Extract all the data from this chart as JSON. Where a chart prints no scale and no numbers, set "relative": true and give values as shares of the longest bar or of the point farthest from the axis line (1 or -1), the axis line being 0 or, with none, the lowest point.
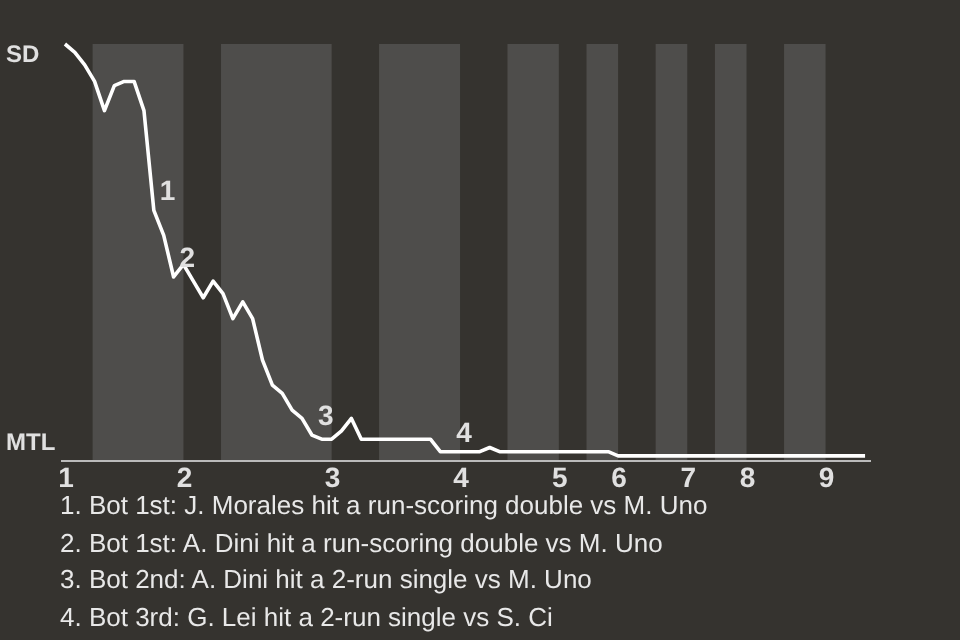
{
  "chart_data": {
    "type": "line",
    "categories": [
      "1",
      null,
      null,
      null,
      null,
      null,
      null,
      null,
      null,
      null,
      null,
      null,
      "2",
      null,
      null,
      null,
      null,
      null,
      null,
      null,
      null,
      null,
      null,
      null,
      null,
      null,
      null,
      "3",
      null,
      null,
      null,
      null,
      null,
      null,
      null,
      null,
      null,
      null,
      null,
      null,
      "4",
      null,
      null,
      null,
      null,
      null,
      null,
      null,
      null,
      null,
      "5",
      null,
      null,
      null,
      null,
      null,
      "6",
      null,
      null,
      null,
      null,
      null,
      null,
      "7",
      null,
      null,
      null,
      null,
      null,
      "8",
      null,
      null,
      null,
      null,
      null,
      null,
      null,
      "9",
      null,
      null,
      null,
      null
    ],
    "series": [
      {
        "color": "#ffffff",
        "values": [
          1,
          0.98,
          0.95,
          0.91,
          0.84,
          0.9,
          0.91,
          0.91,
          0.84,
          0.6,
          0.54,
          0.44,
          0.47,
          0.43,
          0.39,
          0.43,
          0.4,
          0.34,
          0.38,
          0.34,
          0.24,
          0.18,
          0.16,
          0.12,
          0.1,
          0.06,
          0.05,
          0.05,
          0.07,
          0.1,
          0.05,
          0.05,
          0.05,
          0.05,
          0.05,
          0.05,
          0.05,
          0.05,
          0.02,
          0.02,
          0.02,
          0.02,
          0.02,
          0.03,
          0.02,
          0.02,
          0.02,
          0.02,
          0.02,
          0.02,
          0.02,
          0.02,
          0.02,
          0.02,
          0.02,
          0.02,
          0.01,
          0.01,
          0.01,
          0.01,
          0.01,
          0.01,
          0.01,
          0.01,
          0.01,
          0.01,
          0.01,
          0.01,
          0.01,
          0.01,
          0.01,
          0.01,
          0.01,
          0.01,
          0.01,
          0.01,
          0.01,
          0.01,
          0.01,
          0.01,
          0.01,
          0.01
        ]
      }
    ],
    "relative": true,
    "annotations": [
      "1",
      "2",
      "3",
      "4",
      "SD",
      "MTL",
      "1. Bot 1st: J. Morales hit a run-scoring double vs M. Uno",
      "2. Bot 1st: A. Dini hit a run-scoring double vs M. Uno",
      "3. Bot 2nd: A. Dini hit a 2-run single vs M. Uno",
      "4. Bot 3rd: G. Lei hit a 2-run single vs S. Ci"
    ]
  }
}
